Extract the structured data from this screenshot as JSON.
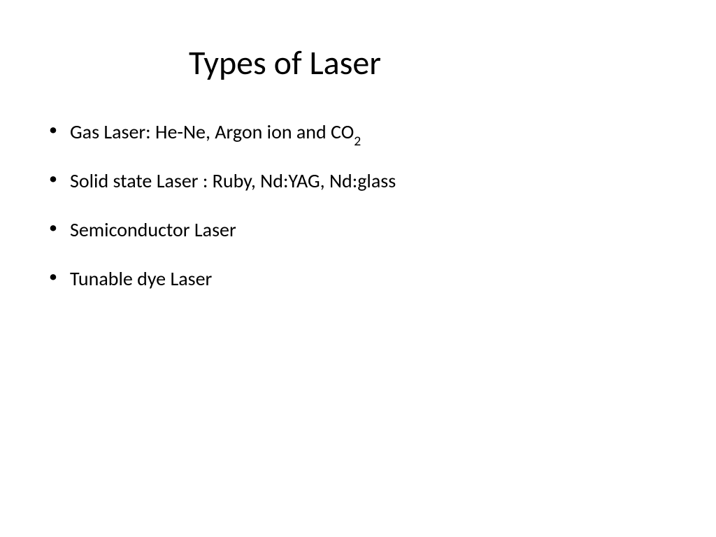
{
  "slide": {
    "title": "Types of Laser",
    "title_fontsize": 48,
    "title_color": "#000000",
    "background_color": "#ffffff",
    "bullets": [
      {
        "text_pre": "Gas Laser: He-Ne, Argon ion and CO",
        "subscript": "2",
        "text_post": ""
      },
      {
        "text_pre": "Solid state Laser : Ruby, Nd:YAG, Nd:glass",
        "subscript": "",
        "text_post": ""
      },
      {
        "text_pre": "Semiconductor Laser",
        "subscript": "",
        "text_post": ""
      },
      {
        "text_pre": "Tunable dye Laser",
        "subscript": "",
        "text_post": ""
      }
    ],
    "bullet_fontsize": 28,
    "bullet_color": "#000000",
    "bullet_marker": "•",
    "font_family": "Calibri"
  }
}
